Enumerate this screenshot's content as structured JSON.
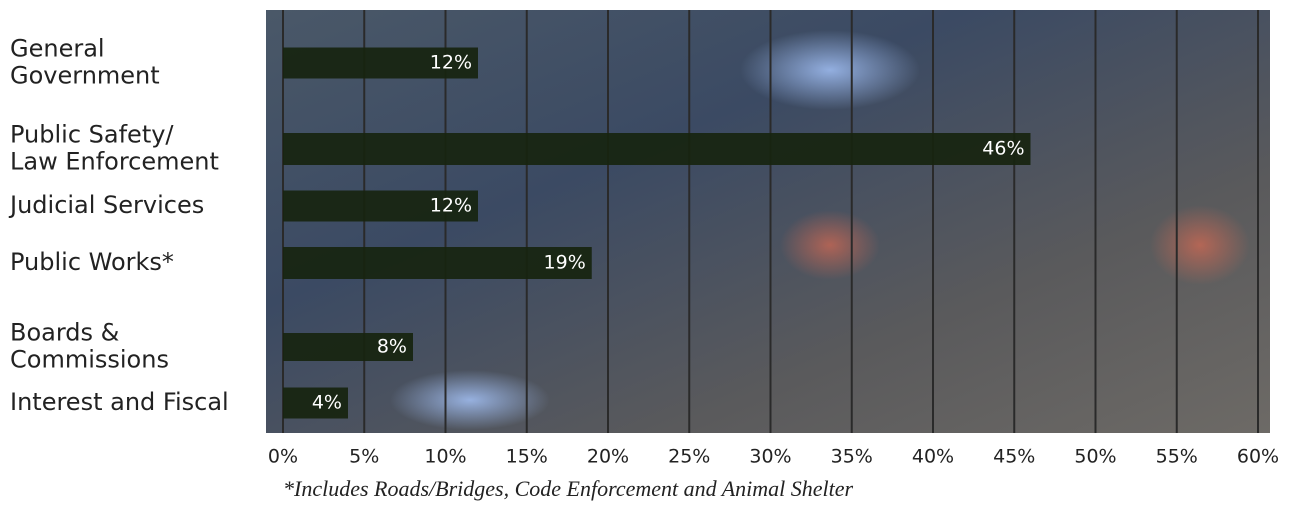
{
  "chart_data": {
    "type": "hbar",
    "categories": [
      [
        "General",
        "Government"
      ],
      [
        "Public Safety/",
        "Law Enforcement"
      ],
      [
        "Judicial Services"
      ],
      [
        "Public Works*"
      ],
      [
        "Boards &",
        "Commissions"
      ],
      [
        "Interest and Fiscal"
      ]
    ],
    "values": [
      12,
      46,
      12,
      19,
      8,
      4
    ],
    "value_labels": [
      "12%",
      "46%",
      "12%",
      "19%",
      "8%",
      "4%"
    ],
    "color": "#17240f",
    "xlim": [
      0,
      60
    ],
    "xticks": [
      {
        "value": 0,
        "label": "0%"
      },
      {
        "value": 5,
        "label": "5%"
      },
      {
        "value": 10,
        "label": "10%"
      },
      {
        "value": 15,
        "label": "15%"
      },
      {
        "value": 20,
        "label": "20%"
      },
      {
        "value": 25,
        "label": "25%"
      },
      {
        "value": 30,
        "label": "30%"
      },
      {
        "value": 35,
        "label": "35%"
      },
      {
        "value": 40,
        "label": "40%"
      },
      {
        "value": 45,
        "label": "45%"
      },
      {
        "value": 50,
        "label": "50%"
      },
      {
        "value": 55,
        "label": "55%"
      },
      {
        "value": 60,
        "label": "60%"
      }
    ],
    "grid": true,
    "footnote": "*Includes Roads/Bridges, Code Enforcement and Animal Shelter"
  }
}
